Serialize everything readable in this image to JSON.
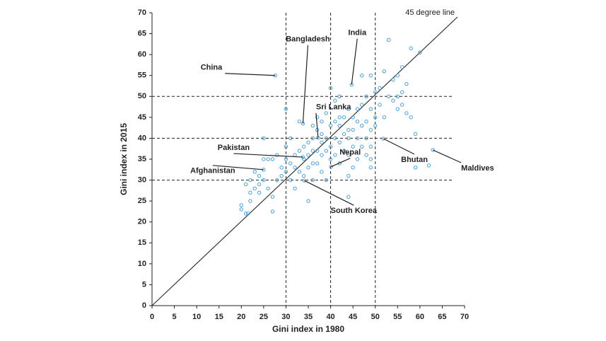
{
  "chart_data": {
    "type": "scatter",
    "x_label": "Gini index in 1980",
    "y_label": "Gini index in 2015",
    "xlim": [
      0,
      70
    ],
    "ylim": [
      0,
      70
    ],
    "xticks": [
      0,
      5,
      10,
      15,
      20,
      25,
      30,
      35,
      40,
      45,
      50,
      55,
      60,
      65,
      70
    ],
    "yticks": [
      0,
      5,
      10,
      15,
      20,
      25,
      30,
      35,
      40,
      45,
      50,
      55,
      60,
      65,
      70
    ],
    "color": "#4a9fd6",
    "diagonal_label": "45 degree line",
    "vlines": [
      30,
      40,
      50
    ],
    "hlines": [
      30,
      40,
      50
    ],
    "x": [
      27.6,
      44.7,
      33.8,
      37.2,
      33.8,
      25,
      40.1,
      34.1,
      51.8,
      62.9,
      20,
      20,
      21,
      21.5,
      22,
      22,
      21,
      22,
      23,
      23,
      24,
      24,
      25,
      25,
      24,
      26,
      27,
      27,
      26,
      27,
      25,
      28,
      28,
      29,
      29,
      30,
      30,
      30,
      30,
      31,
      31,
      31,
      32,
      32,
      32,
      33,
      33,
      33,
      34,
      34,
      34,
      35,
      35,
      35,
      35,
      36,
      36,
      36,
      36,
      37,
      37,
      37,
      37,
      38,
      38,
      38,
      38,
      39,
      39,
      39,
      39,
      40,
      40,
      40,
      41,
      41,
      41,
      41,
      42,
      42,
      42,
      42,
      43,
      43,
      43,
      44,
      44,
      44,
      44,
      45,
      45,
      45,
      45,
      46,
      46,
      46,
      46,
      47,
      47,
      47,
      48,
      48,
      48,
      49,
      49,
      49,
      49,
      49,
      50,
      50,
      51,
      51,
      52,
      52,
      53,
      53,
      54,
      54,
      55,
      55,
      56,
      56,
      57,
      57,
      58,
      58,
      59,
      59,
      60,
      62,
      55,
      56,
      42,
      38,
      36,
      44,
      44,
      49,
      50,
      48,
      40,
      47
    ],
    "values": [
      55.0,
      52.8,
      43.5,
      40.1,
      35.5,
      32.5,
      33.2,
      29.9,
      39.9,
      37.2,
      24,
      23,
      22,
      22,
      25,
      27,
      29,
      30,
      28,
      32,
      31,
      29,
      35,
      30,
      27,
      28,
      26,
      22.5,
      35,
      35,
      40,
      36,
      30,
      31,
      33,
      47,
      38,
      35,
      32,
      30,
      34,
      40,
      36,
      33,
      28,
      44,
      37,
      32,
      38,
      35,
      31,
      39,
      36,
      33,
      25,
      43,
      40,
      37,
      34,
      45,
      42,
      37,
      34,
      44,
      41,
      36,
      32,
      46,
      40,
      37,
      30,
      38,
      43,
      35,
      49,
      44,
      40,
      36,
      50,
      43,
      39,
      34,
      45,
      41,
      37,
      47,
      42,
      40,
      36,
      45,
      42,
      38,
      33,
      47,
      44,
      40,
      35,
      48,
      43,
      38,
      44,
      40,
      36,
      55,
      47,
      42,
      35,
      33,
      51,
      45,
      52,
      48,
      56,
      45,
      63.5,
      50,
      54,
      49,
      55,
      50,
      48,
      57,
      46,
      53,
      45,
      61.5,
      33,
      41,
      60.5,
      33.5,
      47,
      51,
      45,
      39,
      30,
      31,
      26,
      38,
      43,
      50,
      52,
      55
    ],
    "annotations": [
      {
        "text": "China",
        "x": 27.6,
        "y": 55.0
      },
      {
        "text": "India",
        "x": 44.7,
        "y": 52.8
      },
      {
        "text": "Bangladesh",
        "x": 33.8,
        "y": 43.5
      },
      {
        "text": "Sri Lanka",
        "x": 37.2,
        "y": 40.1
      },
      {
        "text": "Pakistan",
        "x": 33.8,
        "y": 35.5
      },
      {
        "text": "Afghanistan",
        "x": 25,
        "y": 32.5
      },
      {
        "text": "Nepal",
        "x": 40.1,
        "y": 33.2
      },
      {
        "text": "South Korea",
        "x": 34.1,
        "y": 29.9
      },
      {
        "text": "Bhutan",
        "x": 51.8,
        "y": 39.9
      },
      {
        "text": "Maldives",
        "x": 62.9,
        "y": 37.2
      }
    ]
  }
}
